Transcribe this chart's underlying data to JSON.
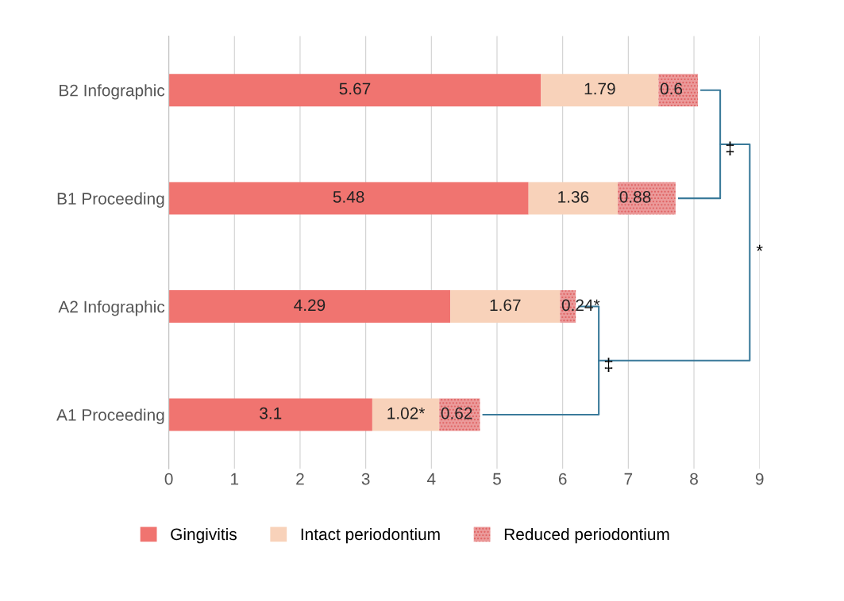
{
  "chart_data": {
    "type": "bar",
    "orientation": "horizontal",
    "stacked": true,
    "categories": [
      "B2 Infographic",
      "B1 Proceeding",
      "A2 Infographic",
      "A1 Proceeding"
    ],
    "series": [
      {
        "name": "Gingivitis",
        "color": "#f07470",
        "values": [
          5.67,
          5.48,
          4.29,
          3.1
        ],
        "value_labels": [
          "5.67",
          "5.48",
          "4.29",
          "3.1"
        ]
      },
      {
        "name": "Intact periodontium",
        "color": "#f8d2ba",
        "values": [
          1.79,
          1.36,
          1.67,
          1.02
        ],
        "value_labels": [
          "1.79",
          "1.36",
          "1.67",
          "1.02*"
        ]
      },
      {
        "name": "Reduced periodontium",
        "color": "#eb9a9a",
        "values": [
          0.6,
          0.88,
          0.24,
          0.62
        ],
        "value_labels": [
          "0.6",
          "0.88",
          "0.24*",
          "0.62"
        ]
      }
    ],
    "xlim": [
      0,
      9
    ],
    "xticks": [
      0,
      1,
      2,
      3,
      4,
      5,
      6,
      7,
      8,
      9
    ],
    "grid": "x",
    "legend": "bottom",
    "annotations": [
      "‡",
      "‡",
      "*"
    ]
  }
}
